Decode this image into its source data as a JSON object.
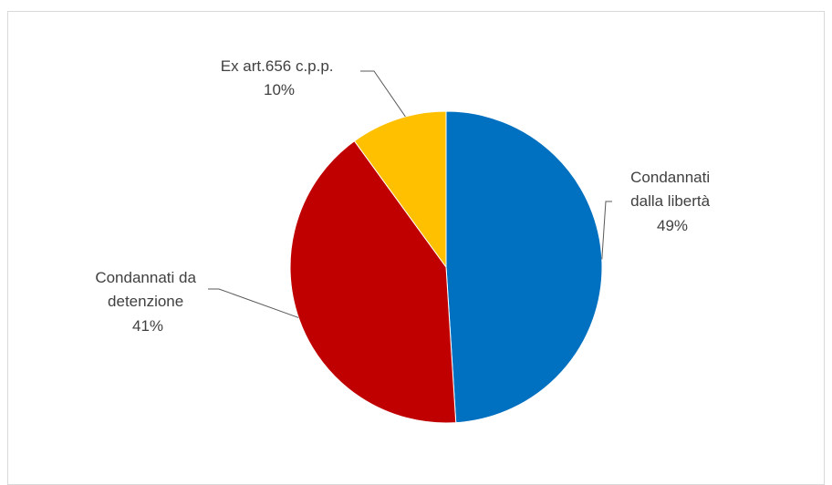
{
  "chart_data": {
    "type": "pie",
    "title": "",
    "start": "top, clockwise",
    "colors": [
      "#0070C0",
      "#C00000",
      "#FFC000"
    ],
    "slices": [
      {
        "lines": [
          "Condannati",
          "dalla libertà"
        ],
        "pct_label": "49%",
        "value": 49,
        "color": "#0070C0"
      },
      {
        "lines": [
          "Condannati da",
          "detenzione"
        ],
        "pct_label": "41%",
        "value": 41,
        "color": "#C00000"
      },
      {
        "lines": [
          "Ex art.656 c.p.p."
        ],
        "pct_label": "10%",
        "value": 10,
        "color": "#FFC000"
      }
    ]
  }
}
